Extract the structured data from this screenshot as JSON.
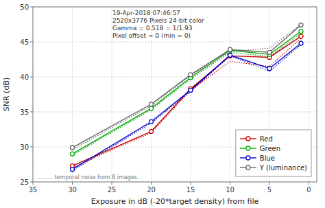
{
  "chart_data": {
    "type": "line",
    "x_label": "Exposure in dB (-20*target density)   from file",
    "y_label": "SNR (dB)",
    "annotations": [
      {
        "text": "19-Apr-2018 07:46:57\n2520x3776 Pixels   24-bit color\nGamma = 0.518 = 1/1.93\nPixel offset = 0  (min = 0)"
      },
      {
        "text": "......... temporal noise from 8 images."
      }
    ],
    "x": [
      30,
      20,
      15,
      10,
      5,
      1
    ],
    "series": [
      {
        "color": "#cc0000",
        "line_style": "dotted",
        "marker": "none",
        "values": [
          27.1,
          32.0,
          38.1,
          42.2,
          41.5,
          45.5
        ]
      },
      {
        "color": "#00aa00",
        "line_style": "dotted",
        "marker": "none",
        "values": [
          28.8,
          35.3,
          39.7,
          43.5,
          42.9,
          46.2
        ]
      },
      {
        "color": "#0000cc",
        "line_style": "dotted",
        "marker": "none",
        "values": [
          26.6,
          33.4,
          37.9,
          43.0,
          40.8,
          44.6
        ]
      },
      {
        "color": "#666666",
        "line_style": "dotted",
        "marker": "none",
        "values": [
          29.6,
          35.9,
          40.2,
          43.6,
          44.1,
          47.5
        ]
      },
      {
        "name": "Red",
        "color": "#cc0000",
        "line_style": "solid",
        "marker": "circle",
        "values": [
          27.3,
          32.2,
          38.3,
          43.0,
          42.8,
          45.8
        ]
      },
      {
        "name": "Green",
        "color": "#00aa00",
        "line_style": "solid",
        "marker": "circle",
        "values": [
          29.0,
          35.5,
          39.9,
          43.8,
          43.2,
          46.5
        ]
      },
      {
        "name": "Blue",
        "color": "#0000cc",
        "line_style": "solid",
        "marker": "circle",
        "values": [
          26.8,
          33.6,
          38.1,
          43.1,
          41.2,
          44.8
        ]
      },
      {
        "name": "Y (luminance)",
        "color": "#666666",
        "line_style": "solid",
        "marker": "circle",
        "values": [
          29.9,
          36.1,
          40.3,
          43.9,
          43.5,
          47.4
        ]
      }
    ],
    "xlim": [
      35,
      -1
    ],
    "ylim": [
      25,
      50
    ],
    "xticks": [
      35,
      30,
      25,
      20,
      15,
      10,
      5,
      0
    ],
    "yticks": [
      25,
      30,
      35,
      40,
      45,
      50
    ],
    "grid": true,
    "legend": "lower right"
  }
}
